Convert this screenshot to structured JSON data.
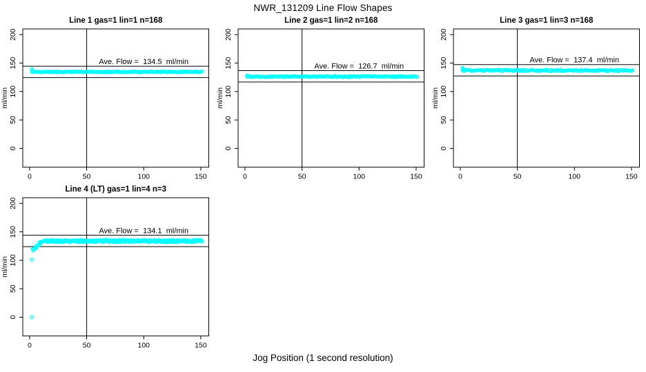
{
  "chart_data": {
    "type": "scatter",
    "title": "NWR_131209  Line Flow Shapes",
    "xlabel": "Jog Position (1 second resolution)",
    "ylabel": "ml/min",
    "x_ticks": [
      0,
      50,
      100,
      150
    ],
    "y_ticks": [
      0,
      50,
      100,
      150,
      200
    ],
    "x_range": [
      -6,
      157
    ],
    "y_range": [
      -33,
      210
    ],
    "grid": false,
    "legend": "none",
    "point_color": "#00ffff",
    "line_color": "#000000",
    "panels": [
      {
        "title": "Line 1 gas=1 lin=1 n=168",
        "gas": 1,
        "lin": 1,
        "n": 168,
        "ave_flow": 134.5,
        "ave_flow_label": "Ave. Flow =  134.5  ml/min",
        "ref_line_upper": 144.5,
        "ref_line_lower": 124.5,
        "vline_x": 50,
        "band": {
          "x_start": 2,
          "x_end": 151,
          "level": 134.5,
          "jitter": 0.7,
          "hook": 5,
          "dense": false
        },
        "ramp": null,
        "outliers": [],
        "seed": 11
      },
      {
        "title": "Line 2 gas=1 lin=2 n=168",
        "gas": 1,
        "lin": 2,
        "n": 168,
        "ave_flow": 126.7,
        "ave_flow_label": "Ave. Flow =  126.7  ml/min",
        "ref_line_upper": 136.7,
        "ref_line_lower": 116.7,
        "vline_x": 50,
        "band": {
          "x_start": 2,
          "x_end": 151,
          "level": 126.3,
          "jitter": 0.9,
          "hook": 1.8,
          "dense": false
        },
        "ramp": null,
        "outliers": [],
        "seed": 22
      },
      {
        "title": "Line 3 gas=1 lin=3 n=168",
        "gas": 1,
        "lin": 3,
        "n": 168,
        "ave_flow": 137.4,
        "ave_flow_label": "Ave. Flow =  137.4  ml/min",
        "ref_line_upper": 147.4,
        "ref_line_lower": 127.4,
        "vline_x": 50,
        "band": {
          "x_start": 2,
          "x_end": 151,
          "level": 137.0,
          "jitter": 1.1,
          "hook": 4.5,
          "dense": false
        },
        "ramp": null,
        "outliers": [],
        "seed": 33
      },
      {
        "title": "Line 4 (LT) gas=1 lin=4 n=3",
        "gas": 1,
        "lin": 4,
        "n": 3,
        "ave_flow": 134.1,
        "ave_flow_label": "Ave. Flow =  134.1  ml/min",
        "ref_line_upper": 144.1,
        "ref_line_lower": 124.1,
        "vline_x": 50,
        "band": {
          "x_start": 3,
          "x_end": 151,
          "level": 133.8,
          "jitter": 1.9,
          "hook": 0,
          "dense": true
        },
        "ramp": {
          "x_start": 3,
          "x_end": 11,
          "y_start": 118.5,
          "y_end": 133.8
        },
        "outliers": [
          [
            2,
            101
          ],
          [
            2,
            0
          ]
        ],
        "seed": 44
      }
    ]
  }
}
